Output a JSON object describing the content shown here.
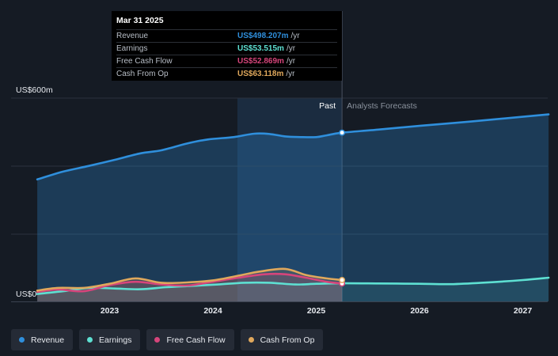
{
  "chart_data": {
    "type": "area",
    "y_axis_top_label": "US$600m",
    "y_axis_bottom_label": "US$0",
    "ylim": [
      0,
      600
    ],
    "x_ticks": [
      "2023",
      "2024",
      "2025",
      "2026",
      "2027"
    ],
    "past_label": "Past",
    "forecast_label": "Analysts Forecasts",
    "divider_date": 2025.25,
    "series": [
      {
        "name": "Revenue",
        "color": "#2f8fdc",
        "x": [
          2022.3,
          2022.55,
          2022.8,
          2023.05,
          2023.3,
          2023.5,
          2023.75,
          2023.95,
          2024.2,
          2024.4,
          2024.55,
          2024.7,
          2024.85,
          2025.0,
          2025.1,
          2025.25,
          2025.6,
          2026.0,
          2026.5,
          2027.0,
          2027.25
        ],
        "y": [
          360,
          383,
          400,
          418,
          437,
          446,
          466,
          478,
          485,
          495,
          494,
          487,
          485,
          485,
          490,
          498,
          507,
          518,
          531,
          545,
          552
        ]
      },
      {
        "name": "Earnings",
        "color": "#5ee0d2",
        "x": [
          2022.3,
          2022.55,
          2022.8,
          2023.05,
          2023.3,
          2023.55,
          2023.8,
          2024.05,
          2024.3,
          2024.55,
          2024.8,
          2025.0,
          2025.25,
          2025.6,
          2026.0,
          2026.3,
          2026.6,
          2027.0,
          2027.25
        ],
        "y": [
          22,
          30,
          40,
          38,
          36,
          42,
          46,
          50,
          55,
          55,
          50,
          52,
          53.5,
          53,
          52,
          51,
          55,
          63,
          70
        ]
      },
      {
        "name": "Free Cash Flow",
        "color": "#d6457b",
        "x": [
          2022.3,
          2022.5,
          2022.75,
          2023.0,
          2023.25,
          2023.5,
          2023.75,
          2024.0,
          2024.25,
          2024.5,
          2024.7,
          2024.9,
          2025.1,
          2025.25
        ],
        "y": [
          28,
          35,
          30,
          48,
          58,
          50,
          47,
          58,
          70,
          80,
          80,
          70,
          58,
          52.9
        ]
      },
      {
        "name": "Cash From Op",
        "color": "#e0a85c",
        "x": [
          2022.3,
          2022.5,
          2022.75,
          2023.0,
          2023.25,
          2023.5,
          2023.75,
          2024.0,
          2024.25,
          2024.45,
          2024.7,
          2024.9,
          2025.1,
          2025.25
        ],
        "y": [
          32,
          40,
          40,
          52,
          68,
          55,
          56,
          62,
          76,
          88,
          96,
          78,
          68,
          63.1
        ]
      }
    ],
    "tooltip": {
      "title": "Mar 31 2025",
      "rows": [
        {
          "label": "Revenue",
          "value": "US$498.207m",
          "unit": "/yr",
          "color": "#2f8fdc"
        },
        {
          "label": "Earnings",
          "value": "US$53.515m",
          "unit": "/yr",
          "color": "#5ee0d2"
        },
        {
          "label": "Free Cash Flow",
          "value": "US$52.869m",
          "unit": "/yr",
          "color": "#d6457b"
        },
        {
          "label": "Cash From Op",
          "value": "US$63.118m",
          "unit": "/yr",
          "color": "#e0a85c"
        }
      ]
    }
  },
  "legend": [
    {
      "label": "Revenue",
      "color": "#2f8fdc"
    },
    {
      "label": "Earnings",
      "color": "#5ee0d2"
    },
    {
      "label": "Free Cash Flow",
      "color": "#d6457b"
    },
    {
      "label": "Cash From Op",
      "color": "#e0a85c"
    }
  ]
}
